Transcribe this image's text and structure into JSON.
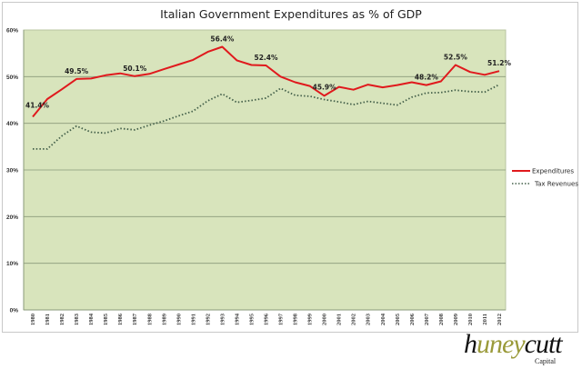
{
  "chart_data": {
    "type": "line",
    "title": "Italian Government Expenditures as % of GDP",
    "xlabel": "",
    "ylabel": "",
    "ylim": [
      0,
      60
    ],
    "yticks": [
      "0%",
      "10%",
      "20%",
      "30%",
      "40%",
      "50%",
      "60%"
    ],
    "ytick_values": [
      0,
      10,
      20,
      30,
      40,
      50,
      60
    ],
    "grid": true,
    "legend_position": "right",
    "x": [
      "1980",
      "1981",
      "1982",
      "1983",
      "1984",
      "1985",
      "1986",
      "1987",
      "1988",
      "1989",
      "1990",
      "1991",
      "1992",
      "1993",
      "1994",
      "1995",
      "1996",
      "1997",
      "1998",
      "1999",
      "2000",
      "2001",
      "2002",
      "2003",
      "2004",
      "2005",
      "2006",
      "2007",
      "2008",
      "2009",
      "2010",
      "2011",
      "2012"
    ],
    "series": [
      {
        "name": "Expenditures",
        "color": "#e0191d",
        "style": "solid",
        "values": [
          41.4,
          45.2,
          47.3,
          49.5,
          49.6,
          50.3,
          50.7,
          50.1,
          50.6,
          51.6,
          52.6,
          53.6,
          55.3,
          56.4,
          53.5,
          52.5,
          52.4,
          50.0,
          48.8,
          48.0,
          45.9,
          47.8,
          47.2,
          48.3,
          47.7,
          48.2,
          48.8,
          48.2,
          49.0,
          52.5,
          51.0,
          50.4,
          51.2
        ]
      },
      {
        "name": "Tax Revenues",
        "color": "#44604a",
        "style": "dotted",
        "values": [
          34.5,
          34.5,
          37.3,
          39.4,
          38.1,
          37.9,
          38.9,
          38.6,
          39.6,
          40.5,
          41.6,
          42.6,
          44.8,
          46.3,
          44.5,
          44.9,
          45.4,
          47.5,
          46.0,
          45.8,
          45.1,
          44.6,
          44.0,
          44.7,
          44.3,
          43.9,
          45.6,
          46.5,
          46.6,
          47.1,
          46.8,
          46.7,
          48.3
        ]
      }
    ],
    "annotations": [
      {
        "series": "Expenditures",
        "x": "1980",
        "value": 41.4,
        "text": "41.4%"
      },
      {
        "series": "Expenditures",
        "x": "1983",
        "value": 49.5,
        "text": "49.5%"
      },
      {
        "series": "Expenditures",
        "x": "1987",
        "value": 50.1,
        "text": "50.1%"
      },
      {
        "series": "Expenditures",
        "x": "1993",
        "value": 56.4,
        "text": "56.4%"
      },
      {
        "series": "Expenditures",
        "x": "1996",
        "value": 52.4,
        "text": "52.4%"
      },
      {
        "series": "Expenditures",
        "x": "2000",
        "value": 45.9,
        "text": "45.9%"
      },
      {
        "series": "Expenditures",
        "x": "2007",
        "value": 48.2,
        "text": "48.2%"
      },
      {
        "series": "Expenditures",
        "x": "2009",
        "value": 52.5,
        "text": "52.5%"
      },
      {
        "series": "Expenditures",
        "x": "2012",
        "value": 51.2,
        "text": "51.2%"
      }
    ],
    "colors": {
      "plot_background": "#d8e4bc",
      "gridline": "#8a9a7a"
    }
  },
  "logo": {
    "main_prefix": "h",
    "main_mid": "uney",
    "main_suffix": "cutt",
    "sub": "Capital"
  }
}
